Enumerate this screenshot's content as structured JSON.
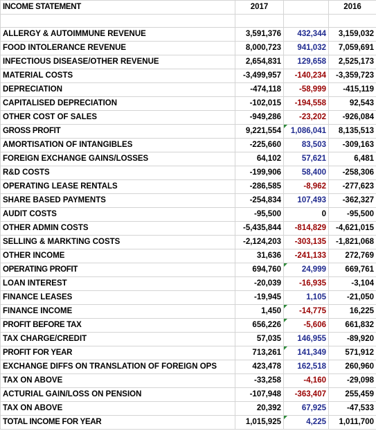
{
  "header": {
    "title": "INCOME STATEMENT",
    "col_2017": "2017",
    "col_var": "",
    "col_2016": "2016"
  },
  "rows": [
    {
      "label": "ALLERGY & AUTOIMMUNE REVENUE",
      "y2017": "3,591,376",
      "var": "432,344",
      "y2016": "3,159,032",
      "sign": "pos",
      "note": false,
      "heavy": false
    },
    {
      "label": "FOOD INTOLERANCE REVENUE",
      "y2017": "8,000,723",
      "var": "941,032",
      "y2016": "7,059,691",
      "sign": "pos",
      "note": false,
      "heavy": false
    },
    {
      "label": "INFECTIOUS DISEASE/OTHER REVENUE",
      "y2017": "2,654,831",
      "var": "129,658",
      "y2016": "2,525,173",
      "sign": "pos",
      "note": false,
      "heavy": false
    },
    {
      "label": "MATERIAL COSTS",
      "y2017": "-3,499,957",
      "var": "-140,234",
      "y2016": "-3,359,723",
      "sign": "neg",
      "note": false,
      "heavy": false
    },
    {
      "label": "DEPRECIATION",
      "y2017": "-474,118",
      "var": "-58,999",
      "y2016": "-415,119",
      "sign": "neg",
      "note": false,
      "heavy": false
    },
    {
      "label": "CAPITALISED DEPRECIATION",
      "y2017": "-102,015",
      "var": "-194,558",
      "y2016": "92,543",
      "sign": "neg",
      "note": false,
      "heavy": false
    },
    {
      "label": "OTHER COST OF SALES",
      "y2017": "-949,286",
      "var": "-23,202",
      "y2016": "-926,084",
      "sign": "neg",
      "note": false,
      "heavy": false
    },
    {
      "label": "GROSS PROFIT",
      "y2017": "9,221,554",
      "var": "1,086,041",
      "y2016": "8,135,513",
      "sign": "pos",
      "note": true,
      "heavy": true
    },
    {
      "label": "AMORTISATION OF INTANGIBLES",
      "y2017": "-225,660",
      "var": "83,503",
      "y2016": "-309,163",
      "sign": "pos",
      "note": false,
      "heavy": false
    },
    {
      "label": "FOREIGN EXCHANGE GAINS/LOSSES",
      "y2017": "64,102",
      "var": "57,621",
      "y2016": "6,481",
      "sign": "pos",
      "note": false,
      "heavy": false
    },
    {
      "label": "R&D COSTS",
      "y2017": "-199,906",
      "var": "58,400",
      "y2016": "-258,306",
      "sign": "pos",
      "note": false,
      "heavy": false
    },
    {
      "label": "OPERATING LEASE RENTALS",
      "y2017": "-286,585",
      "var": "-8,962",
      "y2016": "-277,623",
      "sign": "neg",
      "note": false,
      "heavy": false
    },
    {
      "label": "SHARE BASED PAYMENTS",
      "y2017": "-254,834",
      "var": "107,493",
      "y2016": "-362,327",
      "sign": "pos",
      "note": false,
      "heavy": false
    },
    {
      "label": "AUDIT COSTS",
      "y2017": "-95,500",
      "var": "0",
      "y2016": "-95,500",
      "sign": "zero",
      "note": false,
      "heavy": false
    },
    {
      "label": "OTHER ADMIN COSTS",
      "y2017": "-5,435,844",
      "var": "-814,829",
      "y2016": "-4,621,015",
      "sign": "neg",
      "note": false,
      "heavy": false
    },
    {
      "label": "SELLING & MARKTING COSTS",
      "y2017": "-2,124,203",
      "var": "-303,135",
      "y2016": "-1,821,068",
      "sign": "neg",
      "note": false,
      "heavy": false
    },
    {
      "label": "OTHER INCOME",
      "y2017": "31,636",
      "var": "-241,133",
      "y2016": "272,769",
      "sign": "neg",
      "note": false,
      "heavy": false
    },
    {
      "label": "OPERATING PROFIT",
      "y2017": "694,760",
      "var": "24,999",
      "y2016": "669,761",
      "sign": "pos",
      "note": true,
      "heavy": true
    },
    {
      "label": "LOAN INTEREST",
      "y2017": "-20,039",
      "var": "-16,935",
      "y2016": "-3,104",
      "sign": "neg",
      "note": false,
      "heavy": false
    },
    {
      "label": "FINANCE LEASES",
      "y2017": "-19,945",
      "var": "1,105",
      "y2016": "-21,050",
      "sign": "pos",
      "note": false,
      "heavy": false
    },
    {
      "label": "FINANCE INCOME",
      "y2017": "1,450",
      "var": "-14,775",
      "y2016": "16,225",
      "sign": "neg",
      "note": true,
      "heavy": false
    },
    {
      "label": "PROFIT BEFORE TAX",
      "y2017": "656,226",
      "var": "-5,606",
      "y2016": "661,832",
      "sign": "neg",
      "note": true,
      "heavy": true
    },
    {
      "label": "TAX CHARGE/CREDIT",
      "y2017": "57,035",
      "var": "146,955",
      "y2016": "-89,920",
      "sign": "pos",
      "note": false,
      "heavy": false
    },
    {
      "label": "PROFIT FOR YEAR",
      "y2017": "713,261",
      "var": "141,349",
      "y2016": "571,912",
      "sign": "pos",
      "note": true,
      "heavy": true
    },
    {
      "label": "EXCHANGE DIFFS ON TRANSLATION OF FOREIGN OPS",
      "y2017": "423,478",
      "var": "162,518",
      "y2016": "260,960",
      "sign": "pos",
      "note": false,
      "heavy": false
    },
    {
      "label": "TAX ON ABOVE",
      "y2017": "-33,258",
      "var": "-4,160",
      "y2016": "-29,098",
      "sign": "neg",
      "note": false,
      "heavy": false
    },
    {
      "label": "ACTURIAL GAIN/LOSS ON PENSION",
      "y2017": "-107,948",
      "var": "-363,407",
      "y2016": "255,459",
      "sign": "neg",
      "note": false,
      "heavy": false
    },
    {
      "label": "TAX ON ABOVE",
      "y2017": "20,392",
      "var": "67,925",
      "y2016": "-47,533",
      "sign": "pos",
      "note": false,
      "heavy": false
    },
    {
      "label": "TOTAL INCOME FOR YEAR",
      "y2017": "1,015,925",
      "var": "4,225",
      "y2016": "1,011,700",
      "sign": "pos",
      "note": true,
      "heavy": true
    }
  ],
  "colors": {
    "positive_variance": "#1f2a8f",
    "negative_variance": "#990000",
    "note_marker": "#2e8b3a",
    "gridline": "#d4d4d4"
  }
}
